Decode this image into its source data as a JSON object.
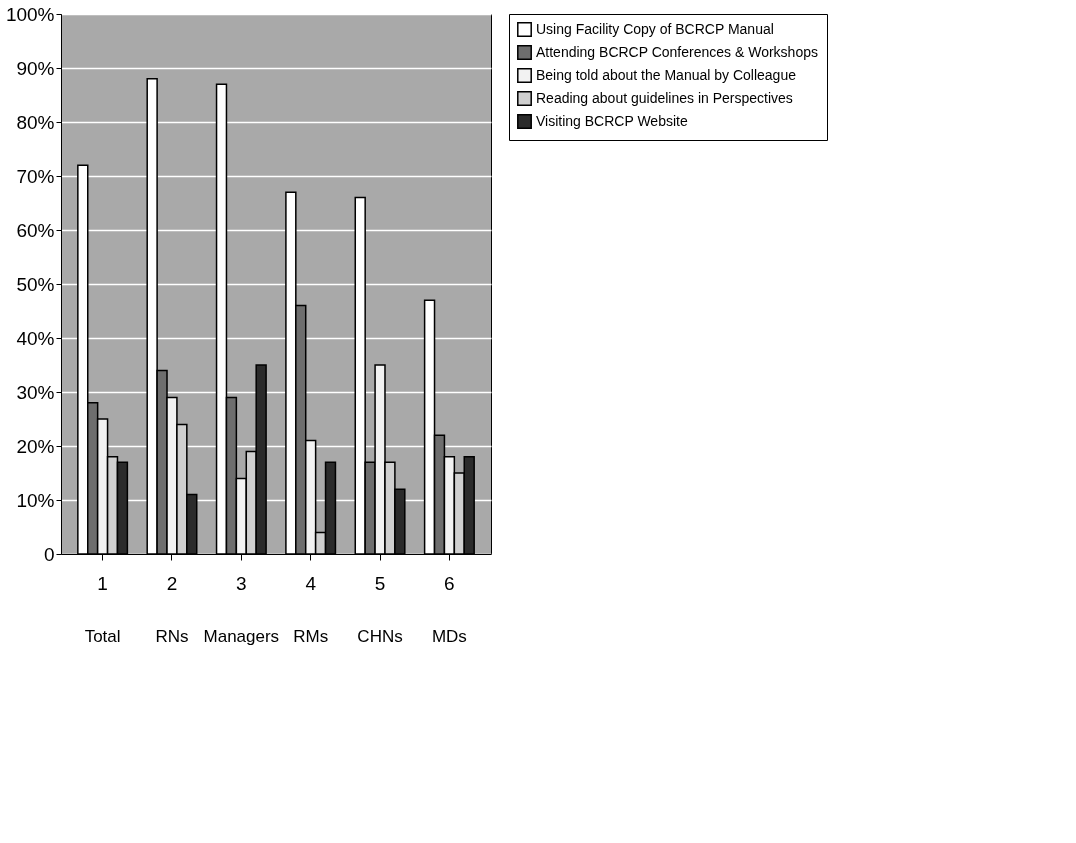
{
  "chart_data": {
    "type": "bar",
    "categories": [
      "1",
      "2",
      "3",
      "4",
      "5",
      "6"
    ],
    "series": [
      {
        "name": "Using Facility Copy of BCRCP Manual",
        "color": "#ffffff",
        "values": [
          72,
          88,
          87,
          67,
          66,
          47
        ]
      },
      {
        "name": "Attending BCRCP Conferences & Workshops",
        "color": "#6e6e6e",
        "values": [
          28,
          34,
          29,
          46,
          17,
          22
        ]
      },
      {
        "name": "Being told about the Manual by Colleague",
        "color": "#f2f2f2",
        "values": [
          25,
          29,
          14,
          21,
          35,
          18
        ]
      },
      {
        "name": "Reading about guidelines in Perspectives",
        "color": "#cfcfcf",
        "values": [
          18,
          24,
          19,
          4,
          17,
          15
        ]
      },
      {
        "name": "Visiting BCRCP Website",
        "color": "#2b2b2b",
        "values": [
          17,
          11,
          35,
          17,
          12,
          18
        ]
      }
    ],
    "ylim": [
      0,
      100
    ],
    "yticks": [
      {
        "value": 0,
        "label": "0"
      },
      {
        "value": 10,
        "label": "10%"
      },
      {
        "value": 20,
        "label": "20%"
      },
      {
        "value": 30,
        "label": "30%"
      },
      {
        "value": 40,
        "label": "40%"
      },
      {
        "value": 50,
        "label": "50%"
      },
      {
        "value": 60,
        "label": "60%"
      },
      {
        "value": 70,
        "label": "70%"
      },
      {
        "value": 80,
        "label": "80%"
      },
      {
        "value": 90,
        "label": "90%"
      },
      {
        "value": 100,
        "label": "100%"
      }
    ],
    "grid": "y",
    "legend": "right",
    "annotations": [
      "Total",
      "RNs",
      "Managers",
      "RMs",
      "CHNs",
      "MDs"
    ]
  }
}
